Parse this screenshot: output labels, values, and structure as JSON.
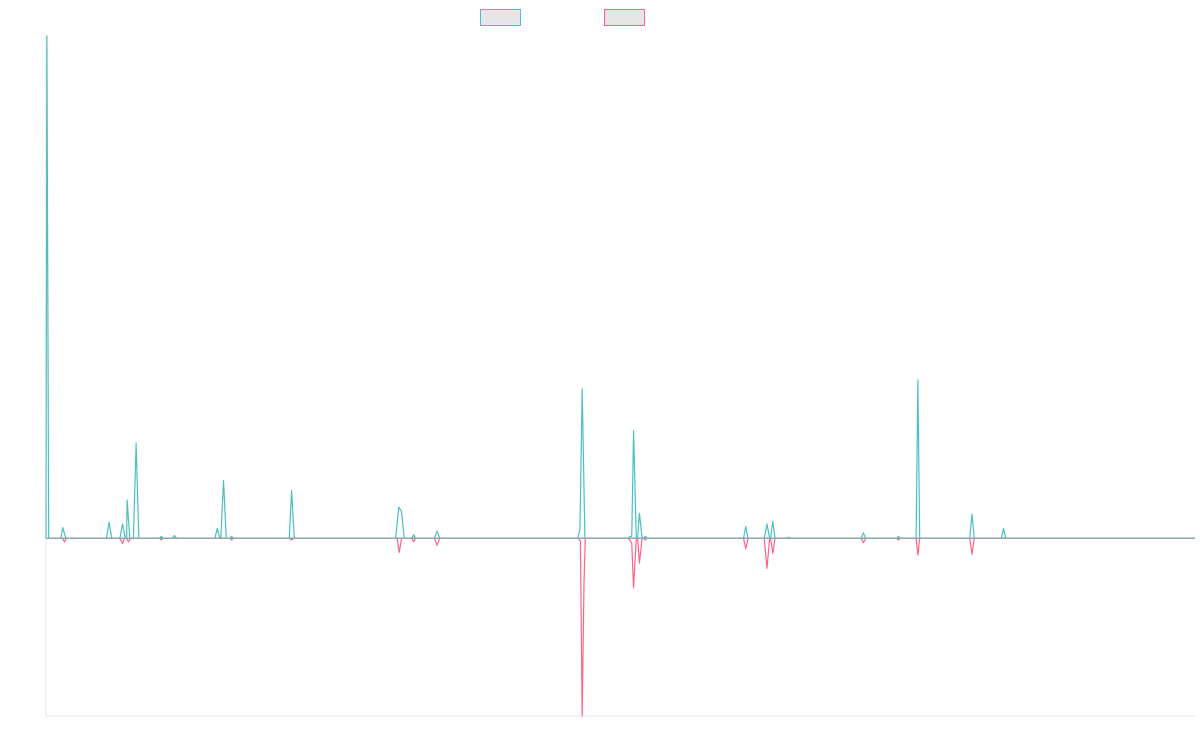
{
  "chart_data": {
    "type": "line",
    "title": "",
    "xlabel": "",
    "ylabel": "",
    "legend_placement": "top-center",
    "grid": false,
    "xlim": [
      0,
      255
    ],
    "ylim": [
      -200,
      565
    ],
    "series": [
      {
        "color": "#4bc0c0",
        "fill": "#e6e6e6",
        "points": [
          [
            0,
            0
          ],
          [
            0.2,
            565
          ],
          [
            0.6,
            0
          ],
          [
            3.3,
            0
          ],
          [
            3.7,
            12
          ],
          [
            4.4,
            0
          ],
          [
            13.4,
            0
          ],
          [
            14,
            18
          ],
          [
            14.6,
            0
          ],
          [
            16.4,
            0
          ],
          [
            17,
            16
          ],
          [
            17.6,
            0
          ],
          [
            17.9,
            0
          ],
          [
            18,
            43
          ],
          [
            18.6,
            0
          ],
          [
            19.4,
            0
          ],
          [
            20,
            107
          ],
          [
            20.6,
            0
          ],
          [
            25.2,
            0
          ],
          [
            25.6,
            2
          ],
          [
            26,
            0
          ],
          [
            28,
            0
          ],
          [
            28.5,
            3
          ],
          [
            29,
            0
          ],
          [
            37.5,
            0
          ],
          [
            38,
            11
          ],
          [
            38.6,
            0
          ],
          [
            38.8,
            0
          ],
          [
            39.4,
            65
          ],
          [
            40,
            0
          ],
          [
            40.8,
            0
          ],
          [
            41.2,
            2
          ],
          [
            41.6,
            0
          ],
          [
            54,
            0
          ],
          [
            54.5,
            54
          ],
          [
            55.1,
            0
          ],
          [
            77.6,
            0
          ],
          [
            78.3,
            35
          ],
          [
            78.9,
            30
          ],
          [
            79.5,
            0
          ],
          [
            81.2,
            0
          ],
          [
            81.6,
            4
          ],
          [
            82,
            0
          ],
          [
            86.2,
            0
          ],
          [
            86.8,
            8
          ],
          [
            87.4,
            0
          ],
          [
            118,
            0
          ],
          [
            118.5,
            10
          ],
          [
            119,
            168
          ],
          [
            119.6,
            0
          ],
          [
            129.2,
            0
          ],
          [
            129.6,
            2
          ],
          [
            130,
            2
          ],
          [
            130.4,
            121
          ],
          [
            131,
            0
          ],
          [
            131.3,
            0
          ],
          [
            131.7,
            28
          ],
          [
            132.3,
            0
          ],
          [
            132.6,
            0
          ],
          [
            133,
            2
          ],
          [
            133.4,
            0
          ],
          [
            154.8,
            0
          ],
          [
            155.3,
            13
          ],
          [
            155.8,
            0
          ],
          [
            159.4,
            0
          ],
          [
            160,
            16
          ],
          [
            160.6,
            0
          ],
          [
            160.8,
            0
          ],
          [
            161.3,
            19
          ],
          [
            161.8,
            0
          ],
          [
            164.4,
            0
          ],
          [
            164.8,
            1
          ],
          [
            165.2,
            0
          ],
          [
            180.9,
            0
          ],
          [
            181.4,
            6
          ],
          [
            181.9,
            0
          ],
          [
            188.8,
            0
          ],
          [
            189.2,
            2
          ],
          [
            189.6,
            0
          ],
          [
            193.1,
            0
          ],
          [
            193.5,
            178
          ],
          [
            193.9,
            0
          ],
          [
            205,
            0
          ],
          [
            205.5,
            27
          ],
          [
            206,
            0
          ],
          [
            212,
            0
          ],
          [
            212.5,
            11
          ],
          [
            213,
            0
          ],
          [
            255,
            0
          ]
        ]
      },
      {
        "color": "#ff6384",
        "fill": "#e6e6e6",
        "points": [
          [
            0,
            0
          ],
          [
            3.6,
            0
          ],
          [
            4.1,
            -4
          ],
          [
            4.6,
            0
          ],
          [
            16.4,
            0
          ],
          [
            17,
            -6
          ],
          [
            17.4,
            0
          ],
          [
            17.8,
            0
          ],
          [
            18.3,
            -4
          ],
          [
            18.8,
            0
          ],
          [
            25.2,
            0
          ],
          [
            25.6,
            -2
          ],
          [
            26,
            0
          ],
          [
            40.8,
            0
          ],
          [
            41.2,
            -2
          ],
          [
            41.6,
            0
          ],
          [
            54,
            0
          ],
          [
            54.5,
            -2
          ],
          [
            55,
            0
          ],
          [
            77.9,
            0
          ],
          [
            78.4,
            -16
          ],
          [
            78.9,
            0
          ],
          [
            81.2,
            0
          ],
          [
            81.6,
            -4
          ],
          [
            82,
            0
          ],
          [
            86.2,
            0
          ],
          [
            86.8,
            -8
          ],
          [
            87.4,
            0
          ],
          [
            118.1,
            0
          ],
          [
            118.6,
            -3
          ],
          [
            119,
            -200
          ],
          [
            119.4,
            -50
          ],
          [
            119.7,
            0
          ],
          [
            129.2,
            0
          ],
          [
            129.6,
            -2
          ],
          [
            130,
            -6
          ],
          [
            130.4,
            -56
          ],
          [
            131,
            0
          ],
          [
            131.3,
            0
          ],
          [
            131.7,
            -28
          ],
          [
            132.3,
            0
          ],
          [
            132.6,
            0
          ],
          [
            133,
            -2
          ],
          [
            133.4,
            0
          ],
          [
            154.8,
            0
          ],
          [
            155.3,
            -12
          ],
          [
            155.8,
            0
          ],
          [
            159.4,
            0
          ],
          [
            160,
            -34
          ],
          [
            160.6,
            0
          ],
          [
            160.8,
            0
          ],
          [
            161.3,
            -17
          ],
          [
            161.8,
            0
          ],
          [
            180.9,
            0
          ],
          [
            181.4,
            -5
          ],
          [
            181.9,
            0
          ],
          [
            188.8,
            0
          ],
          [
            189.2,
            -2
          ],
          [
            189.6,
            0
          ],
          [
            193.1,
            0
          ],
          [
            193.5,
            -19
          ],
          [
            193.9,
            0
          ],
          [
            205,
            0
          ],
          [
            205.5,
            -18
          ],
          [
            206,
            0
          ],
          [
            255,
            0
          ]
        ]
      }
    ]
  }
}
